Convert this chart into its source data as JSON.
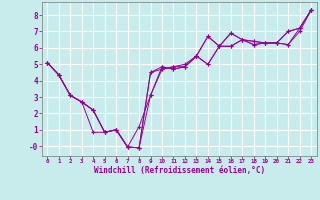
{
  "xlabel": "Windchill (Refroidissement éolien,°C)",
  "bg_color": "#c8ecec",
  "line_color": "#990099",
  "grid_color": "#aadddd",
  "xlim": [
    -0.5,
    23.5
  ],
  "ylim": [
    -0.6,
    8.8
  ],
  "xtick_labels": [
    "0",
    "1",
    "2",
    "3",
    "4",
    "5",
    "6",
    "7",
    "8",
    "9",
    "10",
    "11",
    "12",
    "13",
    "14",
    "15",
    "16",
    "17",
    "18",
    "19",
    "20",
    "21",
    "22",
    "23"
  ],
  "ytick_labels": [
    "-0",
    "1",
    "2",
    "3",
    "4",
    "5",
    "6",
    "7",
    "8"
  ],
  "ytick_vals": [
    0,
    1,
    2,
    3,
    4,
    5,
    6,
    7,
    8
  ],
  "series": [
    [
      5.1,
      4.35,
      3.1,
      2.7,
      2.2,
      0.85,
      1.0,
      -0.05,
      -0.1,
      3.1,
      4.85,
      4.7,
      4.85,
      5.5,
      6.7,
      6.1,
      6.9,
      6.5,
      6.4,
      6.3,
      6.3,
      7.0,
      7.2,
      8.3
    ],
    [
      5.1,
      4.35,
      3.1,
      2.7,
      0.85,
      0.85,
      1.0,
      -0.05,
      1.2,
      3.1,
      4.7,
      4.85,
      4.85,
      5.5,
      6.7,
      6.1,
      6.9,
      6.5,
      6.4,
      6.3,
      6.3,
      7.0,
      7.2,
      8.3
    ],
    [
      5.1,
      4.35,
      3.1,
      2.7,
      2.2,
      0.85,
      1.0,
      -0.05,
      -0.1,
      4.5,
      4.7,
      4.85,
      5.0,
      5.5,
      5.0,
      6.1,
      6.1,
      6.5,
      6.2,
      6.3,
      6.3,
      6.2,
      7.0,
      8.3
    ],
    [
      5.1,
      4.35,
      3.1,
      2.7,
      2.2,
      0.85,
      1.0,
      -0.05,
      -0.1,
      4.5,
      4.85,
      4.7,
      4.85,
      5.5,
      5.0,
      6.1,
      6.1,
      6.5,
      6.2,
      6.3,
      6.3,
      6.2,
      7.2,
      8.3
    ]
  ]
}
